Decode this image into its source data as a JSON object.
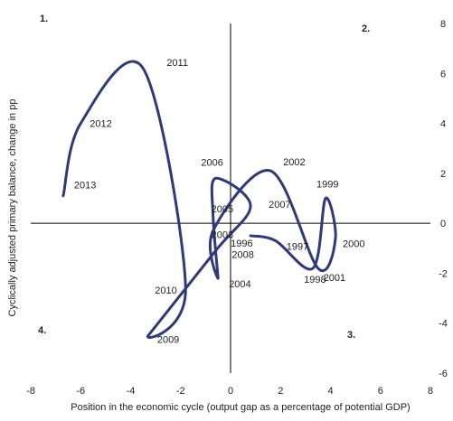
{
  "chart_data": {
    "type": "line",
    "title": "",
    "xlabel": "Position in the economic cycle  (output gap as a percentage of potential GDP)",
    "ylabel": "Cyclically adjusted primary balance, change in pp",
    "xlim": [
      -8,
      8
    ],
    "ylim": [
      -6,
      8
    ],
    "x_ticks": [
      "-8",
      "-6",
      "-4",
      "-2",
      "0",
      "2",
      "4",
      "6",
      "8"
    ],
    "y_ticks": [
      "-6",
      "-4",
      "-2",
      "0",
      "2",
      "4",
      "6",
      "8"
    ],
    "grid": false,
    "quadrant_labels": [
      "1.",
      "2.",
      "3.",
      "4."
    ],
    "series": [
      {
        "color": "#2e3a7a",
        "points": [
          {
            "year": "1996",
            "x": 0.8,
            "y": -0.5
          },
          {
            "year": "1997",
            "x": 1.8,
            "y": -0.7
          },
          {
            "year": "1998",
            "x": 3.3,
            "y": -1.8
          },
          {
            "year": "1999",
            "x": 3.8,
            "y": 1.0
          },
          {
            "year": "2000",
            "x": 4.2,
            "y": -0.6
          },
          {
            "year": "2001",
            "x": 3.5,
            "y": -1.8
          },
          {
            "year": "2002",
            "x": 1.6,
            "y": 2.1
          },
          {
            "year": "2003",
            "x": -0.7,
            "y": -0.3
          },
          {
            "year": "2004",
            "x": -0.5,
            "y": -2.2
          },
          {
            "year": "2005",
            "x": -0.7,
            "y": 0.3
          },
          {
            "year": "2006",
            "x": -0.6,
            "y": 1.8
          },
          {
            "year": "2007",
            "x": 0.8,
            "y": 0.7
          },
          {
            "year": "2008",
            "x": -0.6,
            "y": -1.1
          },
          {
            "year": "2009",
            "x": -3.3,
            "y": -4.5
          },
          {
            "year": "2010",
            "x": -1.8,
            "y": -2.6
          },
          {
            "year": "2011",
            "x": -3.5,
            "y": 6.2
          },
          {
            "year": "2012",
            "x": -6.0,
            "y": 4.0
          },
          {
            "year": "2013",
            "x": -6.7,
            "y": 1.1
          }
        ]
      }
    ]
  }
}
